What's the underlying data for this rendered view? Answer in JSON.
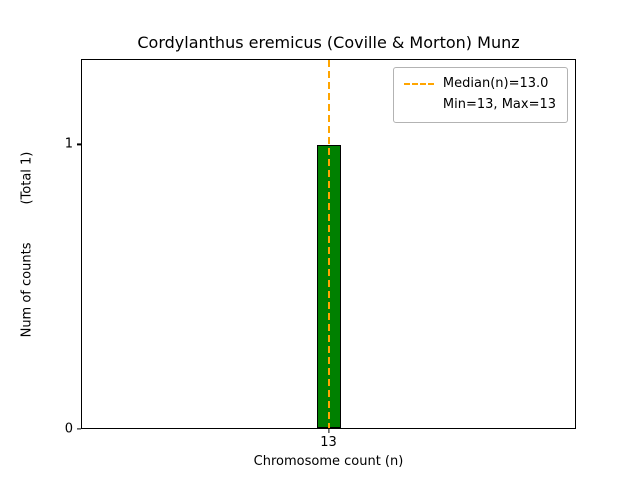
{
  "figure": {
    "background": "#ffffff"
  },
  "chart_data": {
    "type": "bar",
    "title": "Cordylanthus eremicus (Coville & Morton) Munz",
    "xlabel": "Chromosome count (n)",
    "ylabel": "Num of counts",
    "ylabel_right": "(Total 1)",
    "categories": [
      "13"
    ],
    "values": [
      1
    ],
    "ylim": [
      0,
      1.3
    ],
    "yticks": [
      0,
      1
    ],
    "ytick_labels": [
      "0",
      "1"
    ],
    "bar_color": "#008000",
    "bar_edge_color": "#000000",
    "grid": false,
    "median_line": {
      "x": 13,
      "color": "#ffa500",
      "style": "dashed",
      "label": "Median(n)=13.0"
    },
    "legend": {
      "position": "upper right",
      "entries": [
        {
          "label": "Median(n)=13.0",
          "marker": "dashed-line",
          "color": "#ffa500"
        },
        {
          "label": "Min=13, Max=13",
          "marker": "none"
        }
      ]
    }
  }
}
